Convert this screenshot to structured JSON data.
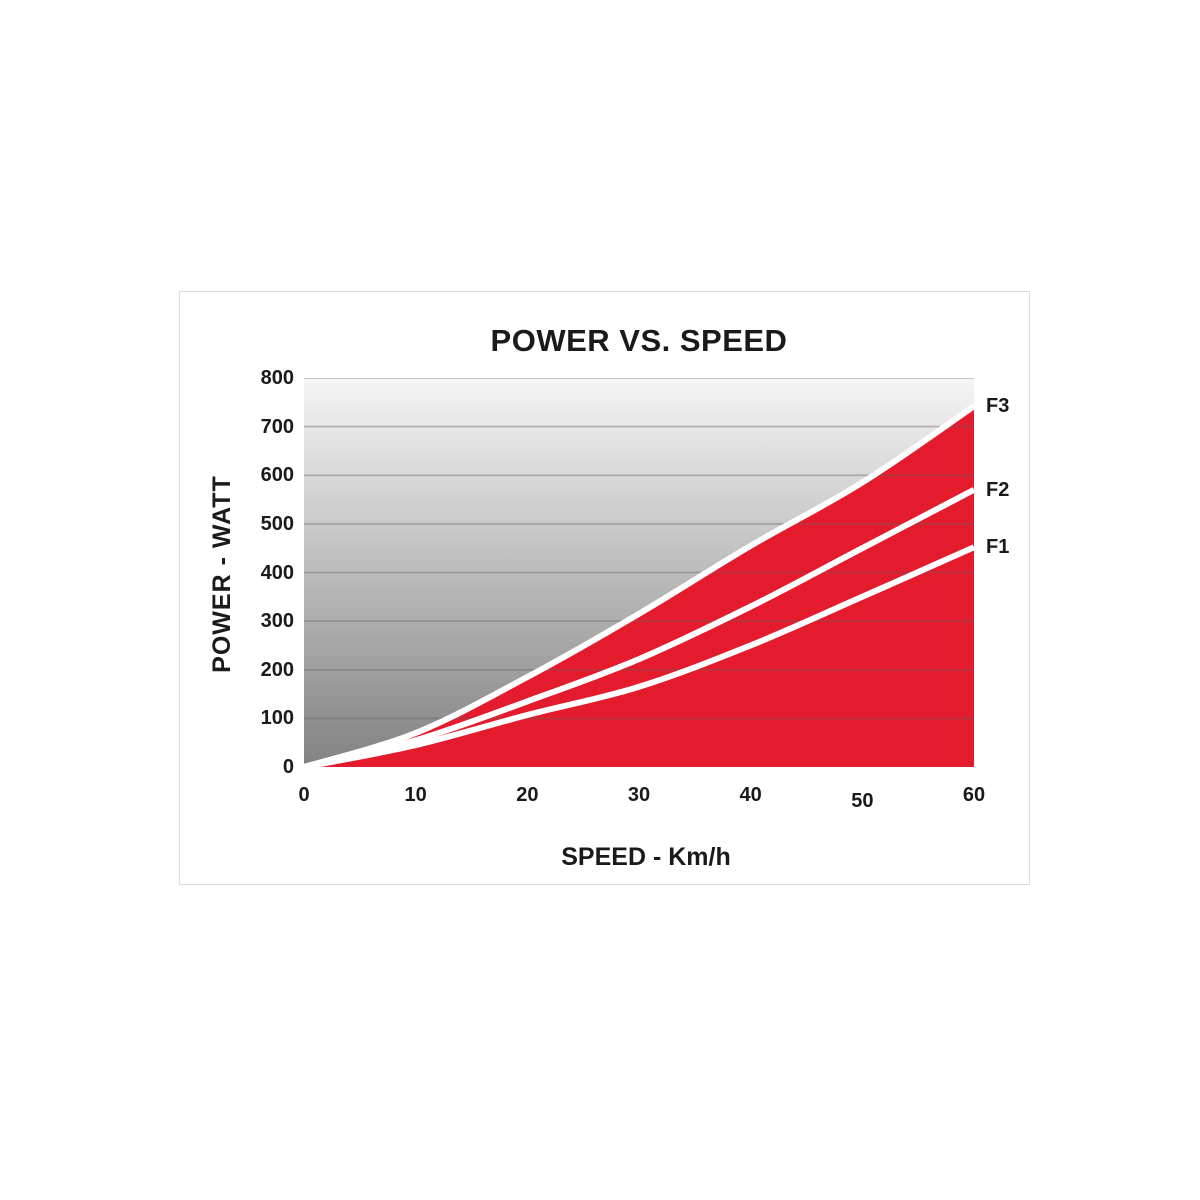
{
  "panel": {
    "title": "POWER VS. SPEED"
  },
  "chart_data": {
    "type": "area",
    "title": "POWER VS. SPEED",
    "xlabel": "SPEED - Km/h",
    "ylabel": "POWER - WATT",
    "xlim": [
      0,
      60
    ],
    "ylim": [
      0,
      800
    ],
    "x_ticks": [
      0,
      10,
      20,
      30,
      40,
      50,
      60
    ],
    "x_tick_y_offsets": [
      0,
      0,
      0,
      0,
      0,
      6,
      0
    ],
    "y_ticks": [
      0,
      100,
      200,
      300,
      400,
      500,
      600,
      700,
      800
    ],
    "grid": "horizontal-only",
    "legend_position": "right-of-curve-ends",
    "x": [
      0,
      10,
      20,
      30,
      40,
      50,
      60
    ],
    "series": [
      {
        "name": "F1",
        "values": [
          0,
          45,
          107,
          165,
          250,
          350,
          452
        ]
      },
      {
        "name": "F2",
        "values": [
          0,
          55,
          135,
          222,
          330,
          450,
          570
        ]
      },
      {
        "name": "F3",
        "values": [
          0,
          70,
          185,
          315,
          455,
          585,
          742
        ]
      }
    ],
    "fill_under_top_curve": "F3",
    "colors": {
      "area_fill": "#e41b2d",
      "curve_stroke": "#ffffff",
      "background_gradient_top": "#f5f5f5",
      "background_gradient_bottom": "#828282",
      "gridline": "rgba(105,95,88,0.42)",
      "text": "#1a1a1a",
      "panel_border": "#dcdcdc"
    }
  }
}
